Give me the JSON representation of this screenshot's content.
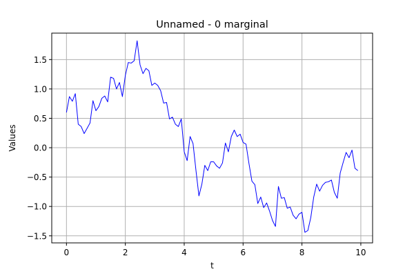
{
  "chart_data": {
    "type": "line",
    "title": "Unnamed - 0 marginal",
    "xlabel": "t",
    "ylabel": "Values",
    "xlim": [
      -0.5,
      10.4
    ],
    "ylim": [
      -1.62,
      1.95
    ],
    "xticks": [
      0,
      2,
      4,
      6,
      8,
      10
    ],
    "yticks": [
      -1.5,
      -1.0,
      -0.5,
      0.0,
      0.5,
      1.0,
      1.5
    ],
    "xtick_labels": [
      "0",
      "2",
      "4",
      "6",
      "8",
      "10"
    ],
    "ytick_labels": [
      "−1.5",
      "−1.0",
      "−0.5",
      "0.0",
      "0.5",
      "1.0",
      "1.5"
    ],
    "grid": true,
    "series": [
      {
        "color": "#0000ff",
        "x": [
          0.0,
          0.1,
          0.2,
          0.3,
          0.4,
          0.5,
          0.6,
          0.7,
          0.8,
          0.9,
          1.0,
          1.1,
          1.2,
          1.3,
          1.4,
          1.5,
          1.6,
          1.7,
          1.8,
          1.9,
          2.0,
          2.1,
          2.2,
          2.3,
          2.4,
          2.5,
          2.6,
          2.7,
          2.8,
          2.9,
          3.0,
          3.1,
          3.2,
          3.3,
          3.4,
          3.5,
          3.6,
          3.7,
          3.8,
          3.9,
          4.0,
          4.1,
          4.2,
          4.3,
          4.4,
          4.5,
          4.6,
          4.7,
          4.8,
          4.9,
          5.0,
          5.1,
          5.2,
          5.3,
          5.4,
          5.5,
          5.6,
          5.7,
          5.8,
          5.9,
          6.0,
          6.1,
          6.2,
          6.3,
          6.4,
          6.5,
          6.6,
          6.7,
          6.8,
          6.9,
          7.0,
          7.1,
          7.2,
          7.3,
          7.4,
          7.5,
          7.6,
          7.7,
          7.8,
          7.9,
          8.0,
          8.1,
          8.2,
          8.3,
          8.4,
          8.5,
          8.6,
          8.7,
          8.8,
          8.9,
          9.0,
          9.1,
          9.2,
          9.3,
          9.4,
          9.5,
          9.6,
          9.7,
          9.8,
          9.9
        ],
        "y": [
          0.6,
          0.87,
          0.79,
          0.92,
          0.4,
          0.36,
          0.24,
          0.33,
          0.42,
          0.8,
          0.63,
          0.7,
          0.84,
          0.88,
          0.78,
          1.2,
          1.18,
          1.0,
          1.11,
          0.87,
          1.23,
          1.45,
          1.44,
          1.48,
          1.82,
          1.41,
          1.26,
          1.35,
          1.31,
          1.06,
          1.1,
          1.06,
          0.97,
          0.76,
          0.77,
          0.49,
          0.52,
          0.4,
          0.36,
          0.49,
          -0.07,
          -0.22,
          0.19,
          0.07,
          -0.39,
          -0.82,
          -0.62,
          -0.3,
          -0.39,
          -0.24,
          -0.24,
          -0.31,
          -0.35,
          -0.26,
          0.08,
          -0.07,
          0.19,
          0.3,
          0.19,
          0.23,
          0.09,
          0.06,
          -0.27,
          -0.57,
          -0.63,
          -0.95,
          -0.84,
          -1.02,
          -0.94,
          -1.08,
          -1.24,
          -1.34,
          -0.66,
          -0.86,
          -0.85,
          -1.03,
          -1.01,
          -1.15,
          -1.21,
          -1.13,
          -1.1,
          -1.44,
          -1.41,
          -1.19,
          -0.84,
          -0.62,
          -0.74,
          -0.64,
          -0.59,
          -0.58,
          -0.55,
          -0.76,
          -0.86,
          -0.43,
          -0.25,
          -0.08,
          -0.17,
          -0.04,
          -0.35,
          -0.39
        ]
      }
    ]
  }
}
